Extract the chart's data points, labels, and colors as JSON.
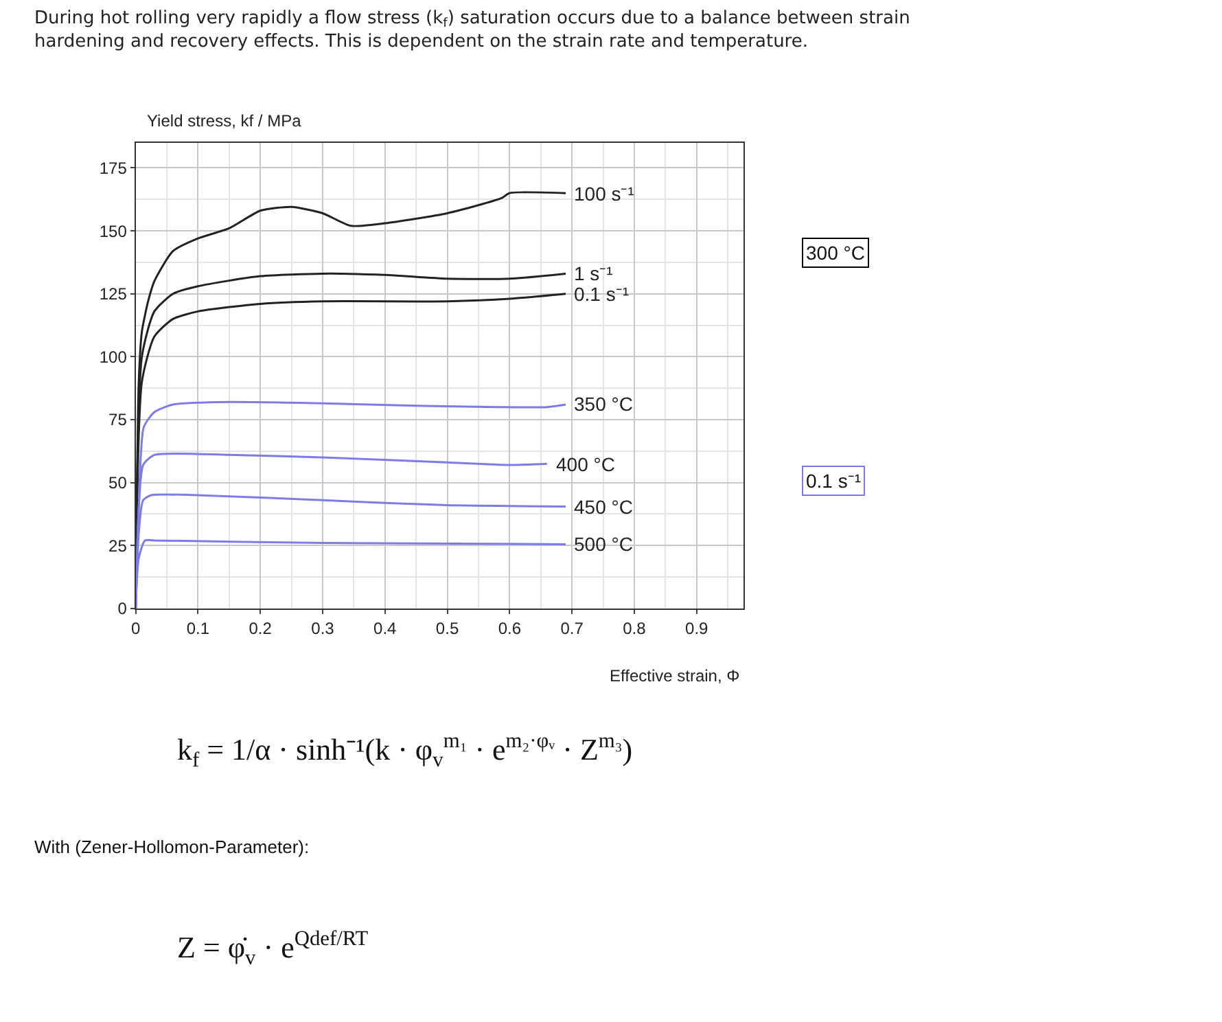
{
  "chart_data": {
    "type": "line",
    "title": "During hot rolling very rapidly a flow stress (k$_{f}$) saturation occurs due to a balance between strain hardening and recovery effects. This is dependent on the strain rate and temperature.",
    "xlabel": "Effective strain, Φ",
    "ylabel": "Yield stress, kf / MPa",
    "xlim": [
      0,
      0.975
    ],
    "ylim": [
      0,
      185
    ],
    "xticks": [
      0,
      0.1,
      0.2,
      0.3,
      0.4,
      0.5,
      0.6,
      0.7,
      0.8,
      0.9
    ],
    "yticks": [
      0,
      25,
      50,
      75,
      100,
      125,
      150,
      175
    ],
    "grid": true,
    "legend": false,
    "marker": "none",
    "line_style": "solid",
    "series": [
      {
        "name": "100 s⁻¹",
        "color": "#222222",
        "x": [
          0,
          0.005,
          0.01,
          0.02,
          0.03,
          0.06,
          0.1,
          0.15,
          0.2,
          0.25,
          0.3,
          0.345,
          0.4,
          0.5,
          0.587,
          0.6,
          0.69
        ],
        "values": [
          0,
          90,
          110,
          122,
          130,
          142,
          147,
          151,
          158,
          159.5,
          157,
          152,
          153,
          157,
          163,
          165,
          165
        ]
      },
      {
        "name": "1 s⁻¹",
        "color": "#222222",
        "x": [
          0,
          0.01,
          0.03,
          0.06,
          0.1,
          0.2,
          0.3,
          0.4,
          0.5,
          0.6,
          0.69
        ],
        "values": [
          0,
          100,
          118,
          125,
          128,
          132,
          133,
          132.5,
          131,
          131,
          133
        ]
      },
      {
        "name": "0.1 s⁻¹",
        "color": "#222222",
        "x": [
          0,
          0.01,
          0.03,
          0.06,
          0.1,
          0.2,
          0.3,
          0.5,
          0.6,
          0.69
        ],
        "values": [
          0,
          90,
          108,
          115,
          118,
          121,
          122,
          122,
          123,
          125
        ]
      },
      {
        "name": "350 °C",
        "color": "#7b7bea",
        "x": [
          0,
          0.005,
          0.013,
          0.03,
          0.06,
          0.15,
          0.3,
          0.45,
          0.58,
          0.66,
          0.69
        ],
        "values": [
          0,
          40,
          72,
          78,
          81,
          82,
          81.5,
          80.5,
          80,
          80,
          81
        ]
      },
      {
        "name": "400 °C",
        "color": "#7b7bea",
        "x": [
          0,
          0.005,
          0.012,
          0.03,
          0.15,
          0.3,
          0.5,
          0.6,
          0.66
        ],
        "values": [
          0,
          40,
          57,
          61,
          61,
          60,
          58,
          57,
          57.5
        ]
      },
      {
        "name": "450 °C",
        "color": "#7b7bea",
        "x": [
          0,
          0.005,
          0.012,
          0.025,
          0.1,
          0.3,
          0.5,
          0.69
        ],
        "values": [
          0,
          30,
          43,
          45,
          45,
          43,
          41,
          40.5
        ]
      },
      {
        "name": "500 °C",
        "color": "#7b7bea",
        "x": [
          0,
          0.005,
          0.015,
          0.03,
          0.3,
          0.69
        ],
        "values": [
          0,
          20,
          27,
          27,
          26,
          25.5
        ]
      }
    ],
    "annotations": [
      "300 °C",
      "0.1 s⁻¹",
      "k$_{f}$ = 1/α · sinh⁻¹(k · φ$_{v}$$^{m₁}$ · e$^{m₂·φᵥ}$ · Z$^{m₃}$)",
      "With (Zener-Hollomon-Parameter):",
      "Z = φ̇$_{v}$ · e$^{Qdef/RT}$"
    ]
  }
}
